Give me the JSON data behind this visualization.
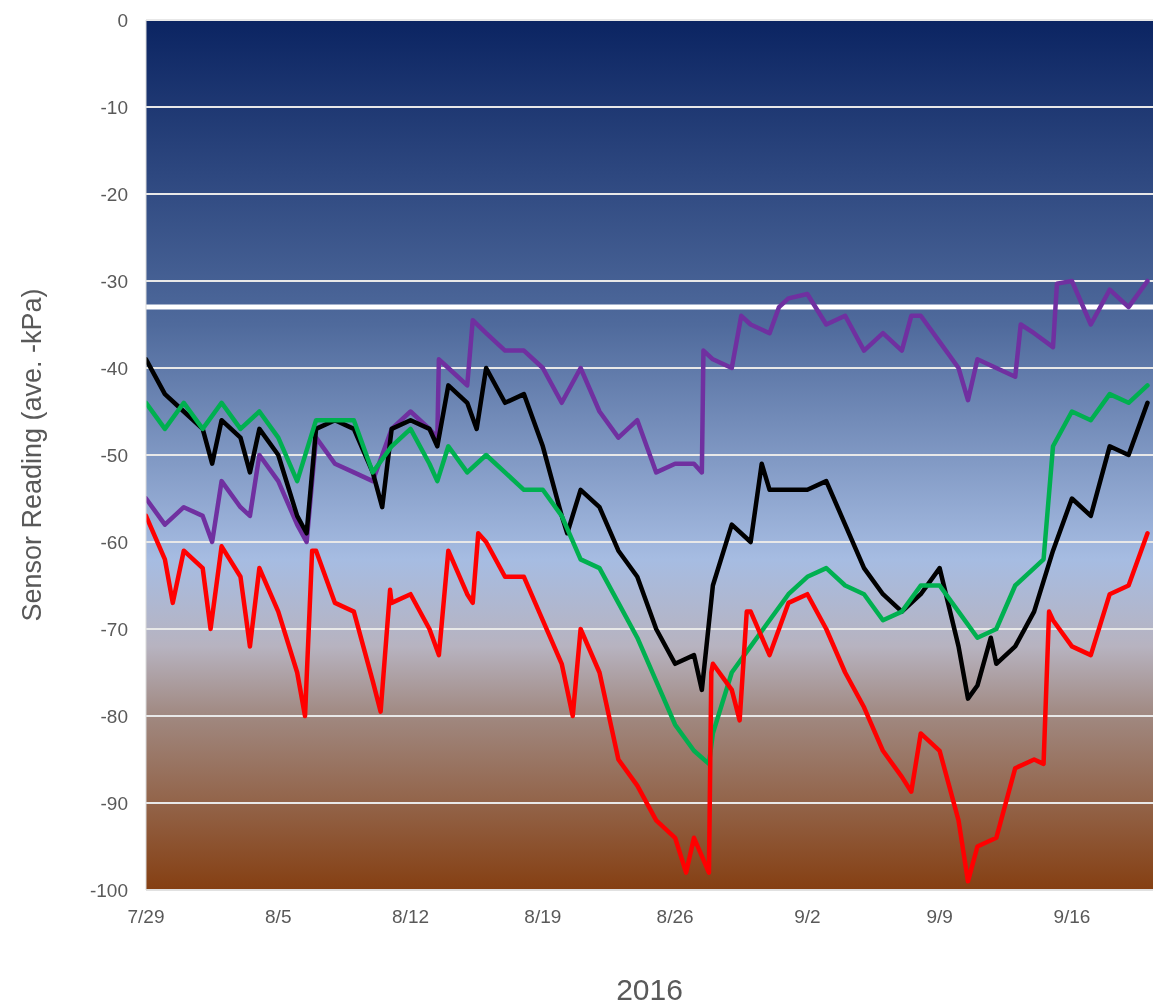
{
  "chart_data": {
    "type": "line",
    "xlabel": "2016",
    "ylabel": "Sensor Reading (ave. -kPa)",
    "xlim": [
      "2016-07-29",
      "2016-09-20T07:00"
    ],
    "xticks": [
      {
        "value": "2016-07-29",
        "label": "7/29"
      },
      {
        "value": "2016-08-05",
        "label": "8/5"
      },
      {
        "value": "2016-08-12",
        "label": "8/12"
      },
      {
        "value": "2016-08-19",
        "label": "8/19"
      },
      {
        "value": "2016-08-26",
        "label": "8/26"
      },
      {
        "value": "2016-09-02",
        "label": "9/2"
      },
      {
        "value": "2016-09-09",
        "label": "9/9"
      },
      {
        "value": "2016-09-16",
        "label": "9/16"
      }
    ],
    "ylim": [
      -100,
      0
    ],
    "yticks": [
      -100,
      -90,
      -80,
      -70,
      -60,
      -50,
      -40,
      -30,
      -20,
      -10,
      0
    ],
    "grid": "y",
    "marker": "none",
    "line_style": "solid",
    "ref_lines": [
      {
        "axis": "y",
        "value": -33,
        "color": "#ffffff"
      }
    ],
    "series": [
      {
        "color": "#7030a0",
        "x": [
          "2016-07-29",
          "2016-07-30",
          "2016-07-31",
          "2016-08-01",
          "2016-08-01T12:00",
          "2016-08-02",
          "2016-08-03",
          "2016-08-03T12:00",
          "2016-08-04",
          "2016-08-05",
          "2016-08-06",
          "2016-08-06T12:00",
          "2016-08-07",
          "2016-08-08",
          "2016-08-09",
          "2016-08-10",
          "2016-08-11",
          "2016-08-12",
          "2016-08-13",
          "2016-08-13T10:00",
          "2016-08-13T12:00",
          "2016-08-14",
          "2016-08-15",
          "2016-08-15T07:00",
          "2016-08-16",
          "2016-08-17",
          "2016-08-18",
          "2016-08-19",
          "2016-08-20",
          "2016-08-21",
          "2016-08-22",
          "2016-08-23",
          "2016-08-24",
          "2016-08-25",
          "2016-08-26",
          "2016-08-27",
          "2016-08-27T10:00",
          "2016-08-27T12:00",
          "2016-08-28",
          "2016-08-29",
          "2016-08-29T12:00",
          "2016-08-30",
          "2016-08-31",
          "2016-08-31T12:00",
          "2016-09-01",
          "2016-09-02",
          "2016-09-03",
          "2016-09-04",
          "2016-09-05",
          "2016-09-06",
          "2016-09-07",
          "2016-09-07T12:00",
          "2016-09-08",
          "2016-09-09",
          "2016-09-10",
          "2016-09-10T12:00",
          "2016-09-11",
          "2016-09-12",
          "2016-09-13",
          "2016-09-13T07:00",
          "2016-09-14",
          "2016-09-15",
          "2016-09-15T05:00",
          "2016-09-16",
          "2016-09-17",
          "2016-09-18",
          "2016-09-19",
          "2016-09-20"
        ],
        "values": [
          -55,
          -58,
          -56,
          -57,
          -60,
          -53,
          -56,
          -57,
          -50,
          -53,
          -58,
          -60,
          -48,
          -51,
          -52,
          -53,
          -47,
          -45,
          -47,
          -48,
          -39,
          -40,
          -42,
          -34.5,
          -36,
          -38,
          -38,
          -40,
          -44,
          -40,
          -45,
          -48,
          -46,
          -52,
          -51,
          -51,
          -52,
          -38,
          -39,
          -40,
          -34,
          -35,
          -36,
          -33,
          -32,
          -31.5,
          -35,
          -34,
          -38,
          -36,
          -38,
          -34,
          -34,
          -37,
          -40,
          -43.7,
          -39,
          -40,
          -41,
          -35,
          -36,
          -37.6,
          -30.3,
          -30,
          -35,
          -31,
          -33,
          -30
        ]
      },
      {
        "color": "#000000",
        "x": [
          "2016-07-29",
          "2016-07-30",
          "2016-07-31",
          "2016-08-01",
          "2016-08-01T12:00",
          "2016-08-02",
          "2016-08-03",
          "2016-08-03T12:00",
          "2016-08-04",
          "2016-08-05",
          "2016-08-06",
          "2016-08-06T12:00",
          "2016-08-07",
          "2016-08-08",
          "2016-08-09",
          "2016-08-10",
          "2016-08-10T12:00",
          "2016-08-11",
          "2016-08-12",
          "2016-08-13",
          "2016-08-13T10:00",
          "2016-08-14",
          "2016-08-15",
          "2016-08-15T12:00",
          "2016-08-16",
          "2016-08-17",
          "2016-08-18",
          "2016-08-19",
          "2016-08-20",
          "2016-08-20T07:00",
          "2016-08-21",
          "2016-08-22",
          "2016-08-23",
          "2016-08-24",
          "2016-08-25",
          "2016-08-26",
          "2016-08-27",
          "2016-08-27T10:00",
          "2016-08-28",
          "2016-08-29",
          "2016-08-30",
          "2016-08-30T14:00",
          "2016-08-31",
          "2016-09-01",
          "2016-09-02",
          "2016-09-03",
          "2016-09-04",
          "2016-09-05",
          "2016-09-06",
          "2016-09-07",
          "2016-09-08",
          "2016-09-09",
          "2016-09-10",
          "2016-09-10T12:00",
          "2016-09-11",
          "2016-09-11T17:00",
          "2016-09-12",
          "2016-09-13",
          "2016-09-14",
          "2016-09-15",
          "2016-09-16",
          "2016-09-17",
          "2016-09-18",
          "2016-09-19",
          "2016-09-20"
        ],
        "values": [
          -39,
          -43,
          -45,
          -47,
          -51,
          -46,
          -48,
          -52,
          -47,
          -50,
          -57,
          -59,
          -47,
          -46,
          -47,
          -52,
          -56,
          -47,
          -46,
          -47,
          -49,
          -42,
          -44,
          -47,
          -40,
          -44,
          -43,
          -49,
          -57,
          -59,
          -54,
          -56,
          -61,
          -64,
          -70,
          -74,
          -73,
          -77,
          -65,
          -58,
          -60,
          -51,
          -54,
          -54,
          -54,
          -53,
          -58,
          -63,
          -66,
          -68,
          -66,
          -63,
          -72,
          -78,
          -76.5,
          -71,
          -74,
          -72,
          -68,
          -61,
          -55,
          -57,
          -49,
          -50,
          -44
        ]
      },
      {
        "color": "#00b050",
        "x": [
          "2016-07-29",
          "2016-07-30",
          "2016-07-31",
          "2016-08-01",
          "2016-08-02",
          "2016-08-03",
          "2016-08-04",
          "2016-08-05",
          "2016-08-06",
          "2016-08-07",
          "2016-08-08",
          "2016-08-09",
          "2016-08-10",
          "2016-08-11",
          "2016-08-12",
          "2016-08-13",
          "2016-08-13T10:00",
          "2016-08-14",
          "2016-08-15",
          "2016-08-16",
          "2016-08-17",
          "2016-08-18",
          "2016-08-19",
          "2016-08-20",
          "2016-08-21",
          "2016-08-22",
          "2016-08-23",
          "2016-08-24",
          "2016-08-25",
          "2016-08-26",
          "2016-08-27",
          "2016-08-27T19:00",
          "2016-08-28",
          "2016-08-29",
          "2016-08-30",
          "2016-08-31",
          "2016-09-01",
          "2016-09-02",
          "2016-09-03",
          "2016-09-04",
          "2016-09-05",
          "2016-09-06",
          "2016-09-07",
          "2016-09-08",
          "2016-09-09",
          "2016-09-10",
          "2016-09-11",
          "2016-09-12",
          "2016-09-13",
          "2016-09-14",
          "2016-09-14T12:00",
          "2016-09-15",
          "2016-09-16",
          "2016-09-17",
          "2016-09-18",
          "2016-09-19",
          "2016-09-20"
        ],
        "values": [
          -44,
          -47,
          -44,
          -47,
          -44,
          -47,
          -45,
          -48,
          -53,
          -46,
          -46,
          -46,
          -52,
          -49,
          -47,
          -51,
          -53,
          -49,
          -52,
          -50,
          -52,
          -54,
          -54,
          -57,
          -62,
          -63,
          -67,
          -71,
          -76,
          -81,
          -84,
          -85.5,
          -82,
          -75,
          -72,
          -69,
          -66,
          -64,
          -63,
          -65,
          -66,
          -69,
          -68,
          -65,
          -65,
          -68,
          -71,
          -70,
          -65,
          -63,
          -62,
          -49,
          -45,
          -46,
          -43,
          -44,
          -42
        ]
      },
      {
        "color": "#ff0000",
        "x": [
          "2016-07-29",
          "2016-07-30",
          "2016-07-30T10:00",
          "2016-07-31",
          "2016-08-01",
          "2016-08-01T10:00",
          "2016-08-02",
          "2016-08-03",
          "2016-08-03T12:00",
          "2016-08-04",
          "2016-08-05",
          "2016-08-06",
          "2016-08-06T10:00",
          "2016-08-06T19:00",
          "2016-08-07",
          "2016-08-08",
          "2016-08-09",
          "2016-08-09T12:00",
          "2016-08-10",
          "2016-08-10T10:00",
          "2016-08-10T22:00",
          "2016-08-11",
          "2016-08-12",
          "2016-08-13",
          "2016-08-13T12:00",
          "2016-08-14",
          "2016-08-15",
          "2016-08-15T07:00",
          "2016-08-15T14:00",
          "2016-08-16",
          "2016-08-17",
          "2016-08-18",
          "2016-08-19",
          "2016-08-20",
          "2016-08-20T14:00",
          "2016-08-21",
          "2016-08-22",
          "2016-08-22T12:00",
          "2016-08-23",
          "2016-08-24",
          "2016-08-25",
          "2016-08-26",
          "2016-08-26T14:00",
          "2016-08-27",
          "2016-08-27T19:00",
          "2016-08-27T22:00",
          "2016-08-28",
          "2016-08-29",
          "2016-08-29T10:00",
          "2016-08-29T19:00",
          "2016-08-30",
          "2016-08-31",
          "2016-09-01",
          "2016-09-02",
          "2016-09-03",
          "2016-09-04",
          "2016-09-05",
          "2016-09-06",
          "2016-09-07",
          "2016-09-07T12:00",
          "2016-09-08",
          "2016-09-09",
          "2016-09-10",
          "2016-09-10T12:00",
          "2016-09-11",
          "2016-09-12",
          "2016-09-13",
          "2016-09-14",
          "2016-09-14T12:00",
          "2016-09-14T19:00",
          "2016-09-15",
          "2016-09-16",
          "2016-09-17",
          "2016-09-18",
          "2016-09-19",
          "2016-09-20"
        ],
        "values": [
          -57,
          -62,
          -67,
          -61,
          -63,
          -70,
          -60.5,
          -64,
          -72,
          -63,
          -68,
          -75,
          -80,
          -61,
          -61,
          -67,
          -68,
          -72,
          -76,
          -79.5,
          -65.5,
          -67,
          -66,
          -70,
          -73,
          -61,
          -66,
          -67,
          -59,
          -60,
          -64,
          -64,
          -69,
          -74,
          -80,
          -70,
          -75,
          -80,
          -85,
          -88,
          -92,
          -94,
          -98,
          -94,
          -98,
          -75,
          -74,
          -77,
          -80.5,
          -68,
          -68,
          -73,
          -67,
          -66,
          -70,
          -75,
          -79,
          -84,
          -87,
          -88.7,
          -82,
          -84,
          -92,
          -99,
          -95,
          -94,
          -86,
          -85,
          -85.5,
          -68,
          -69,
          -72,
          -73,
          -66,
          -65,
          -59
        ]
      }
    ]
  }
}
